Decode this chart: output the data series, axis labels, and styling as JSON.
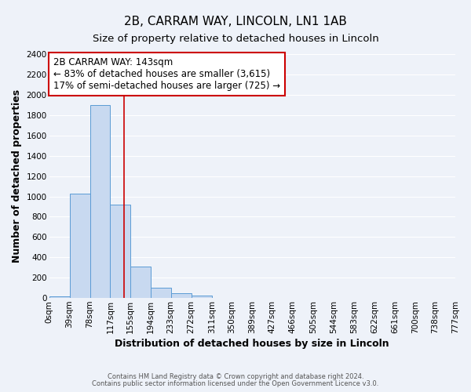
{
  "title": "2B, CARRAM WAY, LINCOLN, LN1 1AB",
  "subtitle": "Size of property relative to detached houses in Lincoln",
  "xlabel": "Distribution of detached houses by size in Lincoln",
  "ylabel": "Number of detached properties",
  "footer_line1": "Contains HM Land Registry data © Crown copyright and database right 2024.",
  "footer_line2": "Contains public sector information licensed under the Open Government Licence v3.0.",
  "bin_edges": [
    0,
    39,
    78,
    117,
    155,
    194,
    233,
    272,
    311,
    350,
    389,
    427,
    466,
    505,
    544,
    583,
    622,
    661,
    700,
    738,
    777
  ],
  "bin_labels": [
    "0sqm",
    "39sqm",
    "78sqm",
    "117sqm",
    "155sqm",
    "194sqm",
    "233sqm",
    "272sqm",
    "311sqm",
    "350sqm",
    "389sqm",
    "427sqm",
    "466sqm",
    "505sqm",
    "544sqm",
    "583sqm",
    "622sqm",
    "661sqm",
    "700sqm",
    "738sqm",
    "777sqm"
  ],
  "bar_heights": [
    20,
    1025,
    1900,
    920,
    310,
    105,
    50,
    25,
    0,
    0,
    0,
    0,
    0,
    0,
    0,
    0,
    0,
    0,
    0,
    0
  ],
  "bar_color": "#c8d9f0",
  "bar_edge_color": "#5b9bd5",
  "property_size": 143,
  "vline_color": "#cc0000",
  "annotation_title": "2B CARRAM WAY: 143sqm",
  "annotation_line1": "← 83% of detached houses are smaller (3,615)",
  "annotation_line2": "17% of semi-detached houses are larger (725) →",
  "annotation_box_edge": "#cc0000",
  "annotation_box_face": "#ffffff",
  "ylim": [
    0,
    2400
  ],
  "background_color": "#eef2f9",
  "grid_color": "#ffffff",
  "title_fontsize": 11,
  "subtitle_fontsize": 9.5,
  "axis_label_fontsize": 9,
  "tick_fontsize": 7.5,
  "annotation_fontsize": 8.5,
  "footer_fontsize": 6.0
}
